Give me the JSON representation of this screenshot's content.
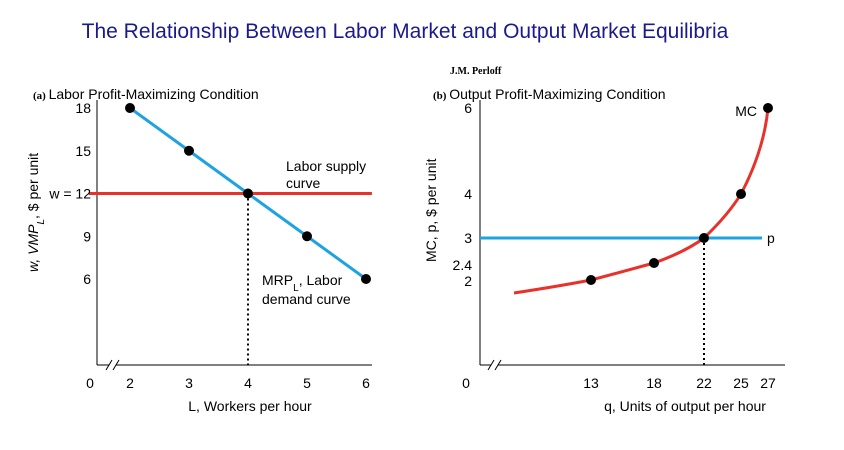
{
  "title": "The Relationship Between Labor Market and Output Market Equilibria",
  "author": "J.M. Perloff",
  "chart_data": [
    {
      "id": "labor",
      "type": "line",
      "panel_letter": "(a)",
      "title": "Labor Profit-Maximizing Condition",
      "xlabel": "L, Workers per hour",
      "ylabel": "w, VMP_L, $ per unit",
      "origin_label": "0",
      "x_ticks": [
        2,
        3,
        4,
        5,
        6
      ],
      "y_ticks": [
        6,
        9,
        15,
        18
      ],
      "y_tick_labels": [
        "6",
        "9",
        "15",
        "18"
      ],
      "xlim": [
        1.3,
        6.1
      ],
      "ylim": [
        2,
        18.5
      ],
      "axis_break": true,
      "series": [
        {
          "name": "MRP_L, Labor demand curve",
          "color": "#1fa3e0",
          "x": [
            2,
            3,
            4,
            5,
            6
          ],
          "y": [
            18,
            15,
            12,
            9,
            6
          ],
          "points": true
        },
        {
          "name": "Labor supply curve",
          "color": "#e8312a",
          "x": [
            1.3,
            6.1
          ],
          "y": [
            12,
            12
          ],
          "points": false
        }
      ],
      "equilibrium": {
        "x": 4,
        "y": 12,
        "y_label": "w = 12"
      },
      "annotations": {
        "supply_line1": "Labor supply",
        "supply_line2": "curve",
        "demand_main": "MRP",
        "demand_sub": "L",
        "demand_rest": ", Labor",
        "demand_line2": "demand curve"
      }
    },
    {
      "id": "output",
      "type": "line",
      "panel_letter": "(b)",
      "title": "Output Profit-Maximizing Condition",
      "xlabel": "q, Units of output per hour",
      "ylabel": "MC, p, $ per unit",
      "origin_label": "0",
      "x_ticks": [
        13,
        18,
        22,
        25,
        27
      ],
      "y_ticks": [
        2,
        2.4,
        3,
        4,
        6
      ],
      "y_tick_labels": [
        "2",
        "2.4",
        "3",
        "4",
        "6"
      ],
      "axis_break": true,
      "series": [
        {
          "name": "MC",
          "color": "#e8312a",
          "x": [
            13,
            18,
            22,
            25,
            27
          ],
          "y": [
            2,
            2.4,
            3,
            4,
            6
          ],
          "points": true
        },
        {
          "name": "p",
          "color": "#1fa3e0",
          "x": [
            8,
            28
          ],
          "y": [
            3,
            3
          ],
          "points": false
        }
      ],
      "equilibrium": {
        "x": 22,
        "y": 3
      }
    }
  ]
}
